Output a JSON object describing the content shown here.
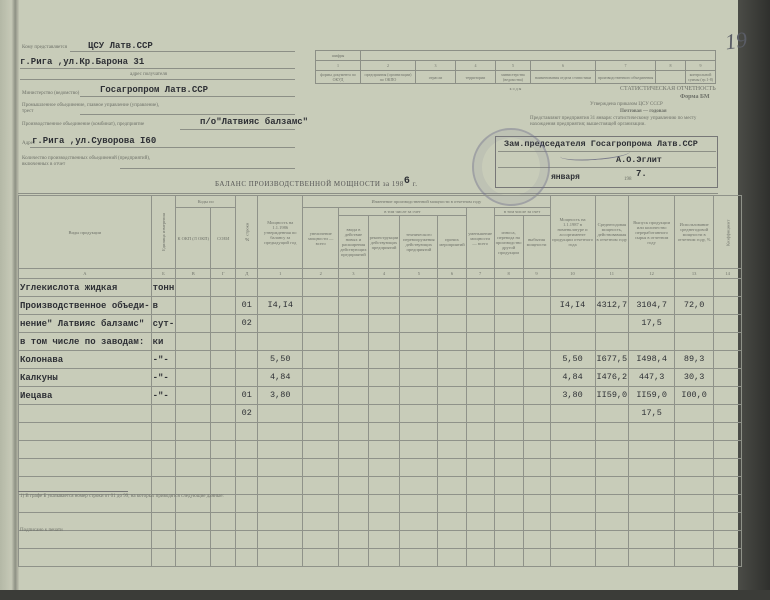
{
  "header": {
    "submitted_to_label": "Кому представляется",
    "submitted_to": "ЦСУ Латв.ССР",
    "submitted_to_address": "г.Рига ,ул.Кр.Барона 31",
    "address_caption": "адрес получателя",
    "ministry_label": "Министерство (ведомство)",
    "ministry": "Госагропром Латв.ССР",
    "industrial_assoc_label": "Промышленное объединение, главное управление (управление), трест",
    "production_assoc_label": "Производственное объединение (комбинат), предприятие",
    "production_assoc": "п/о\"Латвияс балзамс\"",
    "address_label": "Адрес",
    "address": "г.Рига ,ул.Суворова I60",
    "count_label": "Количество производственных объединений (предприятий), включенных в отчет",
    "title": "БАЛАНС ПРОИЗВОДСТВЕННОЙ МОЩНОСТИ за 198",
    "title_year": "6",
    "title_suffix": "г.",
    "handwritten_page": "19"
  },
  "codes_table": {
    "header": "шифры",
    "numbers": [
      "1",
      "2",
      "3",
      "4",
      "5",
      "6",
      "7",
      "8",
      "9"
    ],
    "labels": [
      "формы документа по ОКУД",
      "предприятия (организации) по ОКПО",
      "отрасли",
      "территории",
      "министерства (ведомства)",
      "наименования отдела статистики",
      "производственного объединения",
      "",
      "контрольной суммы (гр.1-8)"
    ],
    "footer": "к о д ы"
  },
  "form_info": {
    "reporting": "СТАТИСТИЧЕСКАЯ ОТЧЕТНОСТЬ",
    "form": "Форма БМ",
    "approved": "Утверждена приказом ЦСУ СССР",
    "mail": "Почтовая — годовая",
    "submit_note": "Представляют предприятия 31 января: статистическому управлению по месту нахождения предприятия; вышестоящей организации."
  },
  "approval": {
    "position": "Зам.председателя Госагропрома Латв.ССР",
    "name": "А.О.Эглит",
    "month": "января",
    "year_prefix": "198",
    "year": "7."
  },
  "table": {
    "col_headers": {
      "A": "Виды продукции",
      "B": "Единица измерения",
      "codes": "Коды по",
      "V": "К ОКП (Л ОКП)",
      "G": "СОЕИ",
      "D": "№ строки",
      "c1": "Мощность на 1.1.1986 утвержденная по балансу за предыдущий год",
      "change": "Изменение производственной мощности в отчетном году",
      "c2": "увеличение мощности — всего",
      "incl1": "в том числе за счет",
      "c3": "ввода в действие новых и расширения действующих предприятий",
      "c4": "реконструкции действующих предприятий",
      "c5": "технического перевооружения действующих предприятий",
      "c6": "прочих мероприятий",
      "c7": "уменьшение мощности — всего",
      "incl2": "в том числе за счет",
      "c8": "износа, перевода на производство другой продукции",
      "c9": "выбытия мощности",
      "c10": "Мощность на 1.1.1987 в номенклатуре и ассортименте продукции отчетного года",
      "c11": "Среднегодовая мощность, действовавшая в отчетном году",
      "c12": "Выпуск продукции или количество переработанного сырья в отчетном году",
      "c13": "Использование среднегодовой мощности в отчетном году, %",
      "c14": "Коэффициент"
    },
    "col_numbers": [
      "А",
      "Б",
      "В",
      "Г",
      "Д",
      "1",
      "2",
      "3",
      "4",
      "5",
      "6",
      "7",
      "8",
      "9",
      "10",
      "11",
      "12",
      "13",
      "14"
    ],
    "rows": [
      {
        "name": "Углекислота жидкая",
        "unit": "тонн",
        "line": "",
        "c1": "",
        "c10": "",
        "c11": "",
        "c12": "",
        "c13": ""
      },
      {
        "name": "Производственное объеди-",
        "unit": "в",
        "line": "01",
        "c1": "I4,I4",
        "c10": "I4,I4",
        "c11": "4312,7",
        "c12": "3104,7",
        "c13": "72,0"
      },
      {
        "name": "нение\" Латвияс балзамс\"",
        "unit": "сут-",
        "line": "02",
        "c1": "",
        "c10": "",
        "c11": "",
        "c12": "17,5",
        "c13": ""
      },
      {
        "name": "в том числе по заводам:",
        "unit": "ки",
        "line": "",
        "c1": "",
        "c10": "",
        "c11": "",
        "c12": "",
        "c13": ""
      },
      {
        "name": "Колонава",
        "unit": "-\"-",
        "line": "",
        "c1": "5,50",
        "c10": "5,50",
        "c11": "I677,5",
        "c12": "I498,4",
        "c13": "89,3"
      },
      {
        "name": "Калкуны",
        "unit": "-\"-",
        "line": "",
        "c1": "4,84",
        "c10": "4,84",
        "c11": "I476,2",
        "c12": "447,3",
        "c13": "30,3"
      },
      {
        "name": "Иецава",
        "unit": "-\"-",
        "line": "01",
        "c1": "3,80",
        "c10": "3,80",
        "c11": "II59,0",
        "c12": "II59,0",
        "c13": "I00,0"
      },
      {
        "name": "",
        "unit": "",
        "line": "02",
        "c1": "",
        "c10": "",
        "c11": "",
        "c12": "17,5",
        "c13": ""
      }
    ]
  },
  "footnote": "1) В графе Б указывается номер строки от 01 до 99, на которых приводятся следующие данные:",
  "printer_note": "Подписано к печати"
}
